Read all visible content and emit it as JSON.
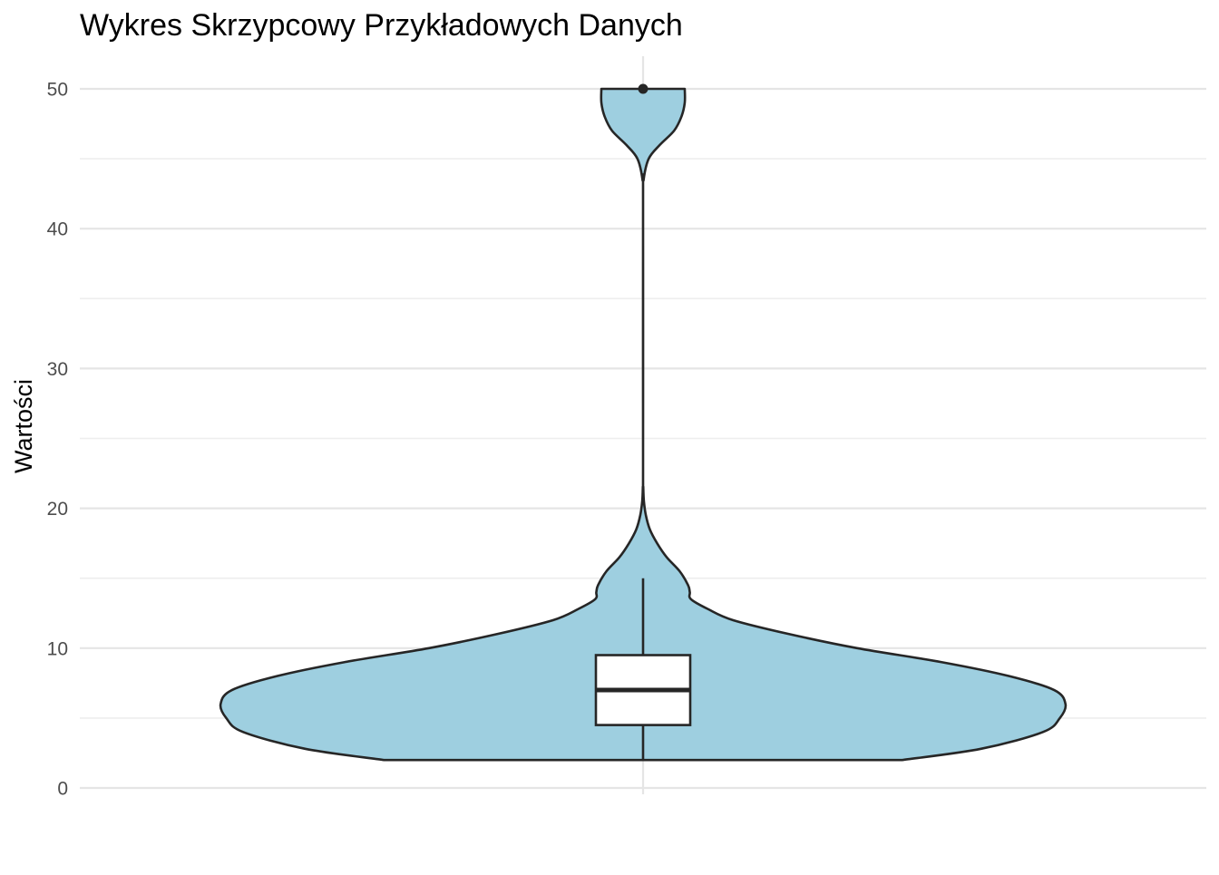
{
  "chart_data": {
    "type": "violin",
    "title": "Wykres Skrzypcowy Przykładowych Danych",
    "xlabel": "",
    "ylabel": "Wartości",
    "ylim": [
      0,
      52.3
    ],
    "yticks": [
      0,
      10,
      20,
      30,
      40,
      50
    ],
    "ytick_labels": [
      "0",
      "10",
      "20",
      "30",
      "40",
      "50"
    ],
    "grid": true,
    "colors": {
      "violin_fill": "#9ecfe0",
      "outline": "#262626",
      "box_fill": "#ffffff",
      "grid_major": "#e5e5e5",
      "grid_minor": "#eeeeee"
    },
    "violin": {
      "range": [
        2,
        50
      ],
      "density_profile": [
        {
          "value": 2,
          "width": 0.46
        },
        {
          "value": 2.8,
          "width": 0.6
        },
        {
          "value": 4,
          "width": 0.71
        },
        {
          "value": 5,
          "width": 0.74
        },
        {
          "value": 6,
          "width": 0.75
        },
        {
          "value": 7,
          "width": 0.73
        },
        {
          "value": 8,
          "width": 0.65
        },
        {
          "value": 9,
          "width": 0.53
        },
        {
          "value": 10,
          "width": 0.38
        },
        {
          "value": 11,
          "width": 0.26
        },
        {
          "value": 12,
          "width": 0.16
        },
        {
          "value": 12.8,
          "width": 0.115
        },
        {
          "value": 13.5,
          "width": 0.085
        },
        {
          "value": 14,
          "width": 0.083
        },
        {
          "value": 14.5,
          "width": 0.08
        },
        {
          "value": 15.5,
          "width": 0.065
        },
        {
          "value": 16.5,
          "width": 0.042
        },
        {
          "value": 17.5,
          "width": 0.025
        },
        {
          "value": 18.5,
          "width": 0.012
        },
        {
          "value": 19.5,
          "width": 0.005
        },
        {
          "value": 20.5,
          "width": 0.0015
        },
        {
          "value": 21.5,
          "width": 0.0004
        },
        {
          "value": 23,
          "width": 0.0
        },
        {
          "value": 42,
          "width": 0.0
        },
        {
          "value": 43.5,
          "width": 0.001
        },
        {
          "value": 45,
          "width": 0.01
        },
        {
          "value": 46,
          "width": 0.03
        },
        {
          "value": 47,
          "width": 0.055
        },
        {
          "value": 48,
          "width": 0.068
        },
        {
          "value": 49,
          "width": 0.074
        },
        {
          "value": 50,
          "width": 0.074
        }
      ]
    },
    "boxplot": {
      "min": 2,
      "q1": 4.5,
      "median": 7,
      "q3": 9.5,
      "whisker_high": 15,
      "outliers": [
        50
      ]
    }
  }
}
